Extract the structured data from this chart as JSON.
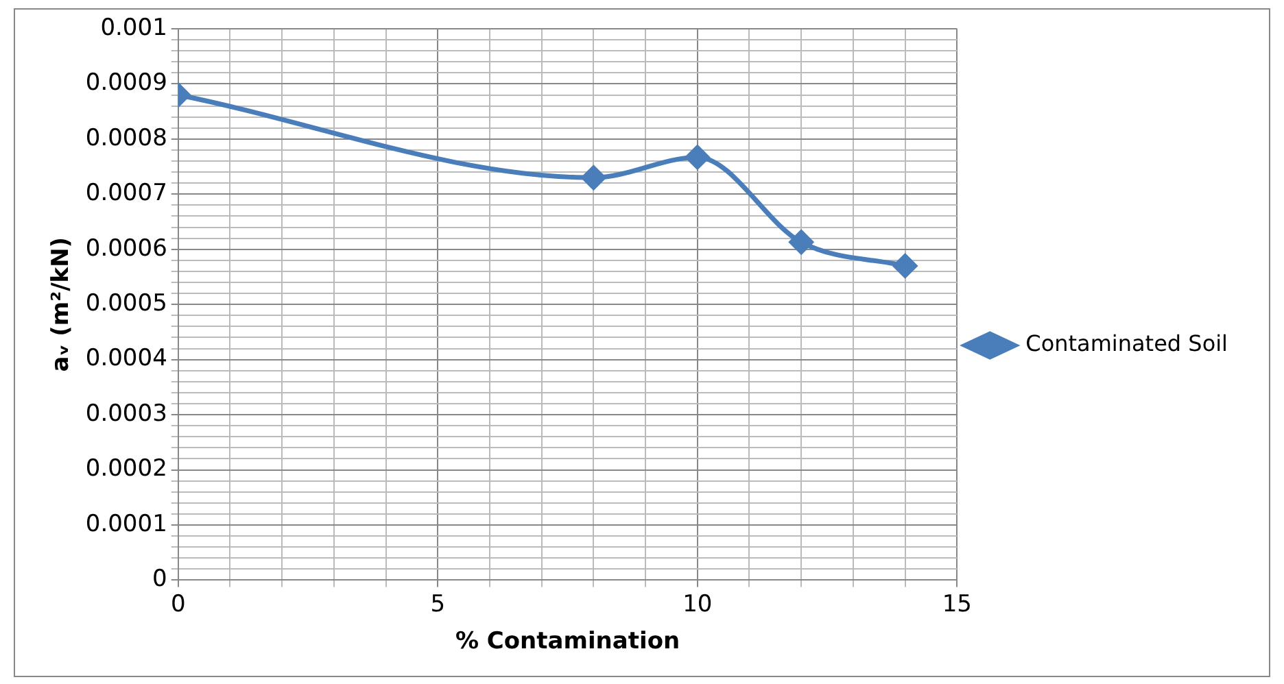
{
  "chart_data": {
    "type": "line",
    "xlabel": "% Contamination",
    "ylabel": "aᵥ (m²/kN)",
    "x": [
      0,
      8,
      10,
      12,
      14
    ],
    "series": [
      {
        "name": "Contaminated Soil",
        "color": "#4a7ebb",
        "values": [
          0.00088,
          0.00073,
          0.000767,
          0.000613,
          0.00057
        ]
      }
    ],
    "xlim": [
      0,
      15
    ],
    "ylim": [
      0,
      0.001
    ],
    "xticks": [
      0,
      {
        "value": 1,
        "label": null
      },
      {
        "value": 2,
        "label": null
      },
      {
        "value": 3,
        "label": null
      },
      {
        "value": 4,
        "label": null
      },
      5,
      {
        "value": 6,
        "label": null
      },
      {
        "value": 7,
        "label": null
      },
      {
        "value": 8,
        "label": null
      },
      {
        "value": 9,
        "label": null
      },
      10,
      {
        "value": 11,
        "label": null
      },
      {
        "value": 12,
        "label": null
      },
      {
        "value": 13,
        "label": null
      },
      {
        "value": 14,
        "label": null
      },
      15
    ],
    "yticks": [
      0,
      {
        "value": 2e-05,
        "label": null
      },
      {
        "value": 4e-05,
        "label": null
      },
      {
        "value": 6e-05,
        "label": null
      },
      {
        "value": 8e-05,
        "label": null
      },
      0.0001,
      {
        "value": 0.00012,
        "label": null
      },
      {
        "value": 0.00014,
        "label": null
      },
      {
        "value": 0.00016,
        "label": null
      },
      {
        "value": 0.00018,
        "label": null
      },
      0.0002,
      {
        "value": 0.00022,
        "label": null
      },
      {
        "value": 0.00024,
        "label": null
      },
      {
        "value": 0.00026,
        "label": null
      },
      {
        "value": 0.00028,
        "label": null
      },
      0.0003,
      {
        "value": 0.00032,
        "label": null
      },
      {
        "value": 0.00034,
        "label": null
      },
      {
        "value": 0.00036,
        "label": null
      },
      {
        "value": 0.00038,
        "label": null
      },
      0.0004,
      {
        "value": 0.00042,
        "label": null
      },
      {
        "value": 0.00044,
        "label": null
      },
      {
        "value": 0.00046,
        "label": null
      },
      {
        "value": 0.00048,
        "label": null
      },
      0.0005,
      {
        "value": 0.00052,
        "label": null
      },
      {
        "value": 0.00054,
        "label": null
      },
      {
        "value": 0.00056,
        "label": null
      },
      {
        "value": 0.00058,
        "label": null
      },
      0.0006,
      {
        "value": 0.00062,
        "label": null
      },
      {
        "value": 0.00064,
        "label": null
      },
      {
        "value": 0.00066,
        "label": null
      },
      {
        "value": 0.00068,
        "label": null
      },
      0.0007,
      {
        "value": 0.00072,
        "label": null
      },
      {
        "value": 0.00074,
        "label": null
      },
      {
        "value": 0.00076,
        "label": null
      },
      {
        "value": 0.00078,
        "label": null
      },
      0.0008,
      {
        "value": 0.00082,
        "label": null
      },
      {
        "value": 0.00084,
        "label": null
      },
      {
        "value": 0.00086,
        "label": null
      },
      {
        "value": 0.00088,
        "label": null
      },
      0.0009,
      {
        "value": 0.00092,
        "label": null
      },
      {
        "value": 0.00094,
        "label": null
      },
      {
        "value": 0.00096,
        "label": null
      },
      {
        "value": 0.00098,
        "label": null
      },
      0.001
    ],
    "grid": true,
    "legend": "right",
    "marker": "diamond",
    "line_style": "solid"
  }
}
